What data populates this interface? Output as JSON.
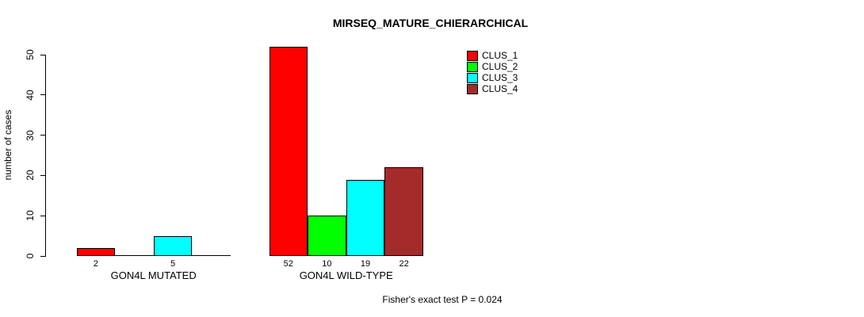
{
  "chart_data": {
    "type": "bar",
    "title": "MIRSEQ_MATURE_CHIERARCHICAL",
    "ylabel": "number of cases",
    "xlabel": "",
    "ylim": [
      0,
      50
    ],
    "yticks": [
      0,
      10,
      20,
      30,
      40,
      50
    ],
    "grid": false,
    "legend_position": "top-right",
    "categories": [
      "GON4L MUTATED",
      "GON4L WILD-TYPE"
    ],
    "series": [
      {
        "name": "CLUS_1",
        "color": "#FF0000",
        "values": [
          2,
          52
        ]
      },
      {
        "name": "CLUS_2",
        "color": "#00FF00",
        "values": [
          0,
          10
        ]
      },
      {
        "name": "CLUS_3",
        "color": "#00FFFF",
        "values": [
          5,
          19
        ]
      },
      {
        "name": "CLUS_4",
        "color": "#A52A2A",
        "values": [
          0,
          22
        ]
      }
    ],
    "groups": [
      {
        "label": "GON4L MUTATED",
        "bar_labels": [
          "2",
          "",
          "5",
          ""
        ]
      },
      {
        "label": "GON4L WILD-TYPE",
        "bar_labels": [
          "52",
          "10",
          "19",
          "22"
        ]
      }
    ],
    "footnote": "Fisher's exact test P = 0.024",
    "axis_color": "#000000",
    "background_color": "#FFFFFF"
  }
}
